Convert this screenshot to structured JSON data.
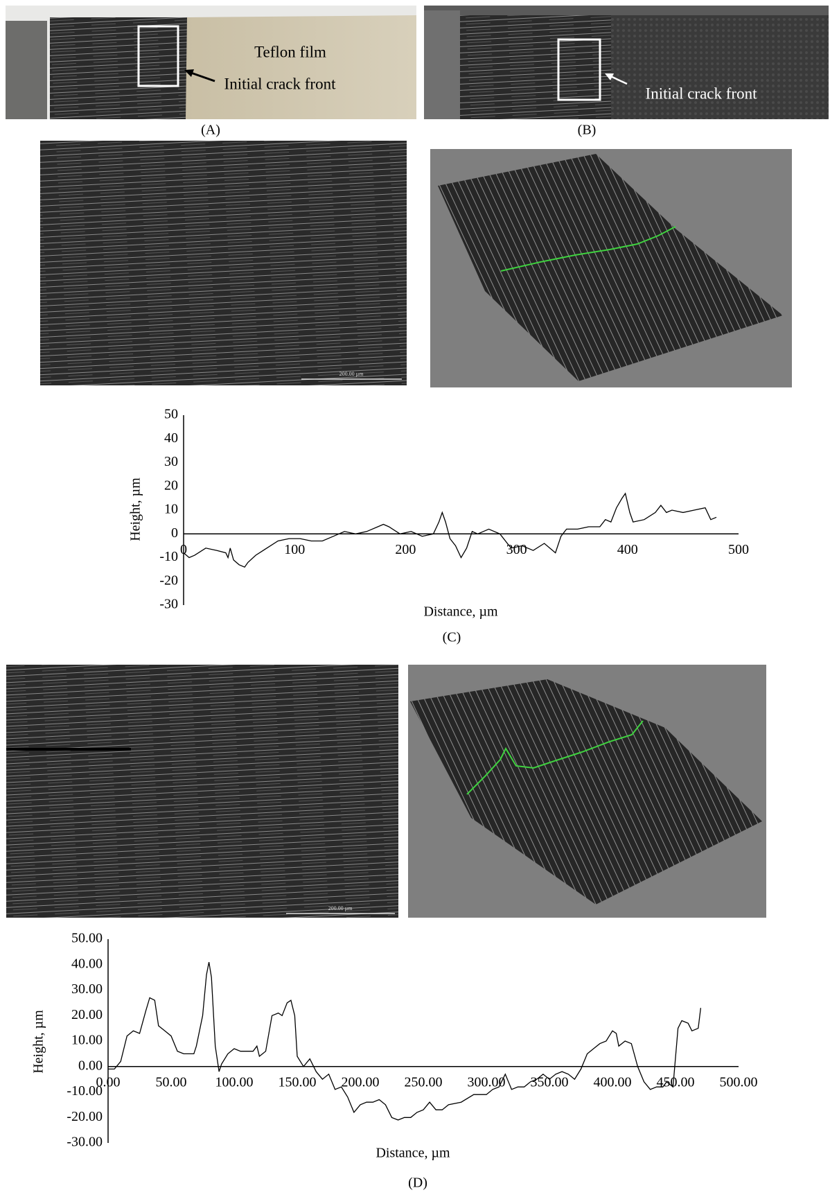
{
  "panels": {
    "A": {
      "label": "(A)",
      "annotations": [
        "Teflon film",
        "Initial crack front"
      ]
    },
    "B": {
      "label": "(B)",
      "annotations": [
        "Initial crack front"
      ]
    },
    "C": {
      "label": "(C)",
      "scale_bar": "200.00 µm"
    },
    "D": {
      "label": "(D)",
      "scale_bar": "200.00 µm"
    }
  },
  "chart_data": [
    {
      "type": "line",
      "xlabel": "Distance, µm",
      "ylabel": "Height, µm",
      "color": "#000000",
      "x": [
        0,
        5,
        10,
        20,
        30,
        38,
        40,
        42,
        45,
        50,
        55,
        58,
        65,
        75,
        85,
        95,
        105,
        115,
        125,
        135,
        145,
        155,
        165,
        175,
        180,
        185,
        195,
        205,
        215,
        225,
        230,
        233,
        236,
        240,
        245,
        250,
        255,
        260,
        265,
        275,
        285,
        295,
        305,
        315,
        325,
        335,
        340,
        345,
        355,
        365,
        375,
        380,
        385,
        390,
        395,
        398,
        402,
        405,
        415,
        425,
        430,
        435,
        440,
        450,
        460,
        470,
        475,
        480
      ],
      "values": [
        -8,
        -10,
        -9,
        -6,
        -7,
        -8,
        -10,
        -6,
        -11,
        -13,
        -14,
        -12,
        -9,
        -6,
        -3,
        -2,
        -2,
        -3,
        -3,
        -1,
        1,
        0,
        1,
        3,
        4,
        3,
        0,
        1,
        -1,
        0,
        5,
        9,
        5,
        -2,
        -5,
        -10,
        -6,
        1,
        0,
        2,
        0,
        -6,
        -5,
        -7,
        -4,
        -8,
        -1,
        2,
        2,
        3,
        3,
        6,
        5,
        11,
        15,
        17,
        9,
        5,
        6,
        9,
        12,
        9,
        10,
        9,
        10,
        11,
        6,
        7
      ],
      "xlim": [
        0,
        500
      ],
      "ylim": [
        -30,
        50
      ],
      "xticks": [
        0,
        100,
        200,
        300,
        400,
        500
      ],
      "yticks": [
        -30,
        -20,
        -10,
        0,
        10,
        20,
        30,
        40,
        50
      ]
    },
    {
      "type": "line",
      "xlabel": "Distance, µm",
      "ylabel": "Height, µm",
      "color": "#000000",
      "x": [
        0,
        5,
        10,
        15,
        20,
        25,
        30,
        33,
        37,
        40,
        45,
        50,
        55,
        60,
        68,
        70,
        75,
        78,
        80,
        82,
        85,
        88,
        90,
        95,
        100,
        105,
        110,
        115,
        118,
        120,
        125,
        130,
        135,
        138,
        142,
        145,
        148,
        150,
        155,
        160,
        165,
        170,
        175,
        180,
        185,
        190,
        195,
        200,
        205,
        210,
        215,
        220,
        225,
        230,
        235,
        240,
        245,
        250,
        255,
        260,
        265,
        270,
        280,
        290,
        300,
        305,
        310,
        315,
        320,
        325,
        330,
        335,
        340,
        345,
        350,
        355,
        360,
        365,
        370,
        375,
        380,
        385,
        390,
        395,
        400,
        403,
        405,
        410,
        415,
        420,
        425,
        430,
        435,
        440,
        443,
        448,
        452,
        455,
        460,
        463,
        468,
        470
      ],
      "values": [
        -1,
        -1,
        2,
        12,
        14,
        13,
        22,
        27,
        26,
        16,
        14,
        12,
        6,
        5,
        5,
        8,
        20,
        36,
        41,
        35,
        8,
        -2,
        1,
        5,
        7,
        6,
        6,
        6,
        8,
        4,
        6,
        20,
        21,
        20,
        25,
        26,
        20,
        4,
        0,
        3,
        -2,
        -5,
        -3,
        -9,
        -8,
        -12,
        -18,
        -15,
        -14,
        -14,
        -13,
        -15,
        -20,
        -21,
        -20,
        -20,
        -18,
        -17,
        -14,
        -17,
        -17,
        -15,
        -14,
        -11,
        -11,
        -9,
        -8,
        -3,
        -9,
        -8,
        -8,
        -6,
        -5,
        -3,
        -5,
        -3,
        -2,
        -3,
        -5,
        -1,
        5,
        7,
        9,
        10,
        14,
        13,
        8,
        10,
        9,
        0,
        -6,
        -9,
        -8,
        -8,
        -6,
        -8,
        15,
        18,
        17,
        14,
        15,
        23
      ],
      "xlim": [
        0,
        500
      ],
      "ylim": [
        -30,
        50
      ],
      "xticks": [
        {
          "value": 0,
          "label": "0.00"
        },
        {
          "value": 50,
          "label": "50.00"
        },
        {
          "value": 100,
          "label": "100.00"
        },
        {
          "value": 150,
          "label": "150.00"
        },
        {
          "value": 200,
          "label": "200.00"
        },
        {
          "value": 250,
          "label": "250.00"
        },
        {
          "value": 300,
          "label": "300.00"
        },
        {
          "value": 350,
          "label": "350.00"
        },
        {
          "value": 400,
          "label": "400.00"
        },
        {
          "value": 450,
          "label": "450.00"
        },
        {
          "value": 500,
          "label": "500.00"
        }
      ],
      "yticks": [
        {
          "value": -30,
          "label": "-30.00"
        },
        {
          "value": -20,
          "label": "-20.00"
        },
        {
          "value": -10,
          "label": "-10.00"
        },
        {
          "value": 0,
          "label": "0.00"
        },
        {
          "value": 10,
          "label": "10.00"
        },
        {
          "value": 20,
          "label": "20.00"
        },
        {
          "value": 30,
          "label": "30.00"
        },
        {
          "value": 40,
          "label": "40.00"
        },
        {
          "value": 50,
          "label": "50.00"
        }
      ]
    }
  ]
}
